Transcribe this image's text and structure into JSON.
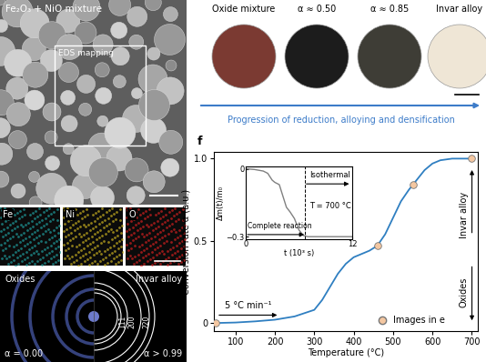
{
  "panels": {
    "sem": {
      "title": "Fe₂O₃ + NiO mixture",
      "box_label": "EDS mapping"
    },
    "eds": {
      "maps": [
        "Fe",
        "Ni",
        "O"
      ]
    },
    "diffraction": {
      "left": {
        "label": "Oxides",
        "alpha": "α = 0.00"
      },
      "right": {
        "label": "Invar alloy",
        "alpha": "α > 0.99"
      },
      "rings": [
        "111",
        "200",
        "220"
      ]
    },
    "photos": {
      "labels": [
        "Oxide mixture",
        "α ≈ 0.50",
        "α ≈ 0.85",
        "Invar alloy"
      ],
      "caption": "Progression of reduction, alloying and densification"
    }
  },
  "chart_data": [
    {
      "type": "line",
      "panel_label": "f",
      "xlabel": "Temperature (°C)",
      "ylabel": "Conversion rate α (a.u.)",
      "x": [
        50,
        100,
        150,
        200,
        250,
        300,
        320,
        340,
        360,
        380,
        400,
        420,
        440,
        460,
        480,
        500,
        520,
        540,
        560,
        580,
        600,
        620,
        650,
        700
      ],
      "values": [
        0,
        0.003,
        0.01,
        0.02,
        0.04,
        0.08,
        0.14,
        0.22,
        0.3,
        0.36,
        0.4,
        0.42,
        0.44,
        0.47,
        0.54,
        0.64,
        0.74,
        0.81,
        0.87,
        0.93,
        0.97,
        0.99,
        1.0,
        1.0
      ],
      "color": "#2f7fc1",
      "xlim": [
        45,
        715
      ],
      "xticks": [
        100,
        200,
        300,
        400,
        500,
        600,
        700
      ],
      "ylim": [
        -0.05,
        1.04
      ],
      "yticks": [
        0,
        0.5,
        {
          "value": 1,
          "label": "1.0"
        }
      ],
      "highlight": {
        "name": "Images in e",
        "x": [
          50,
          460,
          550,
          700
        ],
        "values": [
          0,
          0.47,
          0.84,
          1.0
        ],
        "color": "#f4c7a1",
        "marker": "o"
      },
      "legend": "lower right",
      "annotations": {
        "rate": "5 °C min⁻¹",
        "end": "Invar alloy",
        "start": "Oxides"
      }
    },
    {
      "type": "line",
      "xlabel": "t (10³ s)",
      "ylabel": "Δm(t)/m₀",
      "x": [
        0,
        1,
        2,
        2.5,
        3,
        3.3,
        3.8,
        4.2,
        4.6,
        5.0,
        5.5,
        6.0,
        6.5,
        7,
        12
      ],
      "values": [
        0,
        -0.003,
        -0.01,
        -0.02,
        -0.05,
        -0.06,
        -0.07,
        -0.12,
        -0.17,
        -0.19,
        -0.22,
        -0.27,
        -0.295,
        -0.3,
        -0.3
      ],
      "color": "#808080",
      "xlim": [
        0,
        12
      ],
      "xticks": [
        0,
        12
      ],
      "ylim": [
        -0.31,
        0.01
      ],
      "yticks": [
        0,
        {
          "value": -0.3,
          "label": "−0.3"
        }
      ],
      "vline_x": 6.7,
      "annotations": {
        "complete": "Complete reaction",
        "temperature": "T = 700 °C",
        "isothermal": "Isothermal"
      }
    }
  ]
}
